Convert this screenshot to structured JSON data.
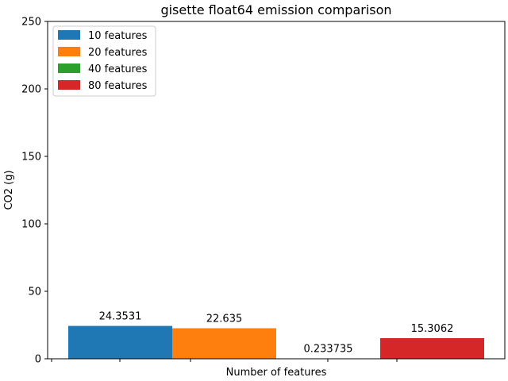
{
  "chart_data": {
    "type": "bar",
    "title": "gisette float64 emission comparison",
    "xlabel": "Number of features",
    "ylabel": "CO2 (g)",
    "ylim": [
      0,
      250
    ],
    "yticks": [
      0,
      50,
      100,
      150,
      200,
      250
    ],
    "xtick_labels": [
      "",
      "",
      "",
      "",
      ""
    ],
    "grid": false,
    "legend_position": "top-left",
    "series": [
      {
        "name": "10 features",
        "value": 24.3531,
        "label": "24.3531",
        "color": "#1f77b4"
      },
      {
        "name": "20 features",
        "value": 22.635,
        "label": "22.635",
        "color": "#ff7f0e"
      },
      {
        "name": "40 features",
        "value": 0.233735,
        "label": "0.233735",
        "color": "#2ca02c"
      },
      {
        "name": "80 features",
        "value": 15.3062,
        "label": "15.3062",
        "color": "#d62728"
      }
    ]
  }
}
